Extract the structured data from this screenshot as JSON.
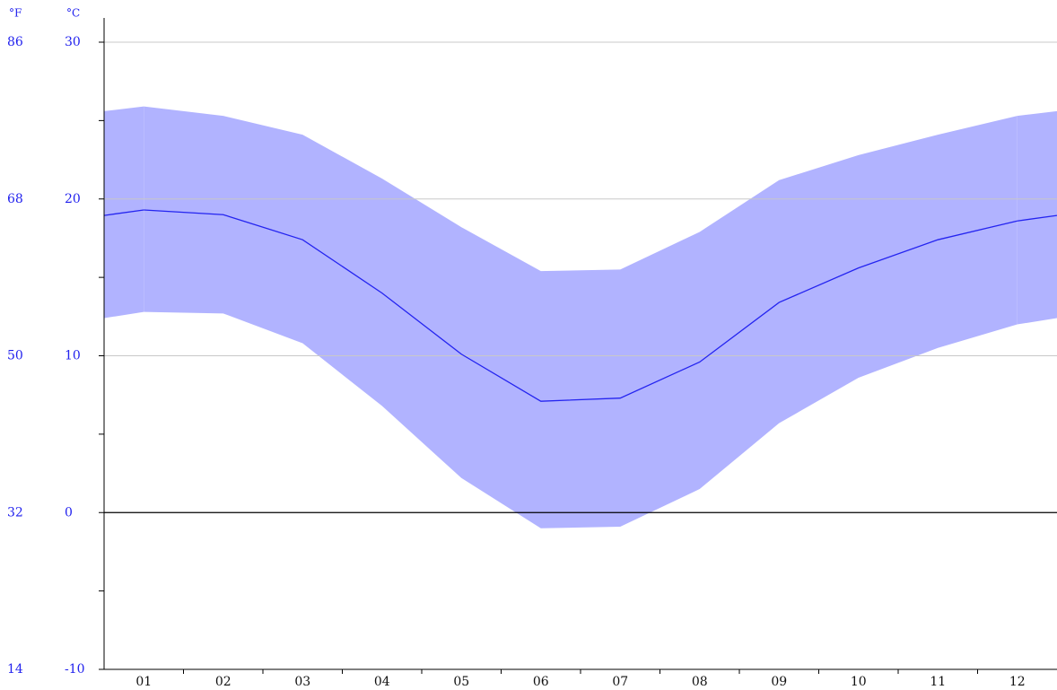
{
  "chart_data": {
    "type": "band-line",
    "ylabel": "°C",
    "y2label": "°F",
    "categories": [
      "01",
      "02",
      "03",
      "04",
      "05",
      "06",
      "07",
      "08",
      "09",
      "10",
      "11",
      "12"
    ],
    "series": [
      {
        "values": [
          19.3,
          19.0,
          17.4,
          14.0,
          10.1,
          7.1,
          7.3,
          9.6,
          13.4,
          15.6,
          17.4,
          18.6
        ],
        "color": "#2424f0"
      }
    ],
    "range": {
      "high": [
        25.9,
        25.3,
        24.1,
        21.3,
        18.2,
        15.4,
        15.5,
        17.9,
        21.2,
        22.8,
        24.1,
        25.3
      ],
      "low": [
        12.8,
        12.7,
        10.8,
        6.8,
        2.2,
        -1.0,
        -0.9,
        1.5,
        5.7,
        8.6,
        10.5,
        12.0
      ],
      "color": "#b1b3ff"
    },
    "ylim": [
      -10,
      30
    ],
    "yticks": [
      -10,
      0,
      10,
      20,
      30
    ],
    "y2lim": [
      14,
      86
    ],
    "y2ticks": [
      14,
      32,
      50,
      68,
      86
    ],
    "grid": true,
    "zero_line": true,
    "label_color": "#2222ee"
  }
}
